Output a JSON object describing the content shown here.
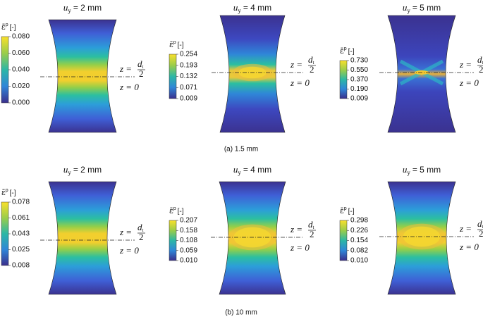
{
  "figure": {
    "annotation": {
      "upper": {
        "lhs": "z =",
        "numerator": "d",
        "numerator_subscript": "t",
        "denominator": "2"
      },
      "lower": "z = 0"
    },
    "rows": [
      {
        "caption": "(a) 1.5 mm",
        "panels": [
          {
            "title": {
              "symbol": "u",
              "subscript": "y",
              "text": "= 2 mm"
            },
            "colorbar": {
              "label": {
                "symbol": "ε̄",
                "superscript": "p",
                "unit": "[-]"
              },
              "ticks": [
                "0.080",
                "0.060",
                "0.040",
                "0.020",
                "0.000"
              ]
            }
          },
          {
            "title": {
              "symbol": "u",
              "subscript": "y",
              "text": "= 4 mm"
            },
            "colorbar": {
              "label": {
                "symbol": "ε̄",
                "superscript": "p",
                "unit": "[-]"
              },
              "ticks": [
                "0.254",
                "0.193",
                "0.132",
                "0.071",
                "0.009"
              ]
            }
          },
          {
            "title": {
              "symbol": "u",
              "subscript": "y",
              "text": "= 5 mm"
            },
            "colorbar": {
              "label": {
                "symbol": "ε̄",
                "superscript": "p",
                "unit": "[-]"
              },
              "ticks": [
                "0.730",
                "0.550",
                "0.370",
                "0.190",
                "0.009"
              ]
            }
          }
        ]
      },
      {
        "caption": "(b) 10 mm",
        "panels": [
          {
            "title": {
              "symbol": "u",
              "subscript": "y",
              "text": "= 2 mm"
            },
            "colorbar": {
              "label": {
                "symbol": "ε̄",
                "superscript": "p",
                "unit": "[-]"
              },
              "ticks": [
                "0.078",
                "0.061",
                "0.043",
                "0.025",
                "0.008"
              ]
            }
          },
          {
            "title": {
              "symbol": "u",
              "subscript": "y",
              "text": "= 4 mm"
            },
            "colorbar": {
              "label": {
                "symbol": "ε̄",
                "superscript": "p",
                "unit": "[-]"
              },
              "ticks": [
                "0.207",
                "0.158",
                "0.108",
                "0.059",
                "0.010"
              ]
            }
          },
          {
            "title": {
              "symbol": "u",
              "subscript": "y",
              "text": "= 5 mm"
            },
            "colorbar": {
              "label": {
                "symbol": "ε̄",
                "superscript": "p",
                "unit": "[-]"
              },
              "ticks": [
                "0.298",
                "0.226",
                "0.154",
                "0.082",
                "0.010"
              ]
            }
          }
        ]
      }
    ]
  }
}
